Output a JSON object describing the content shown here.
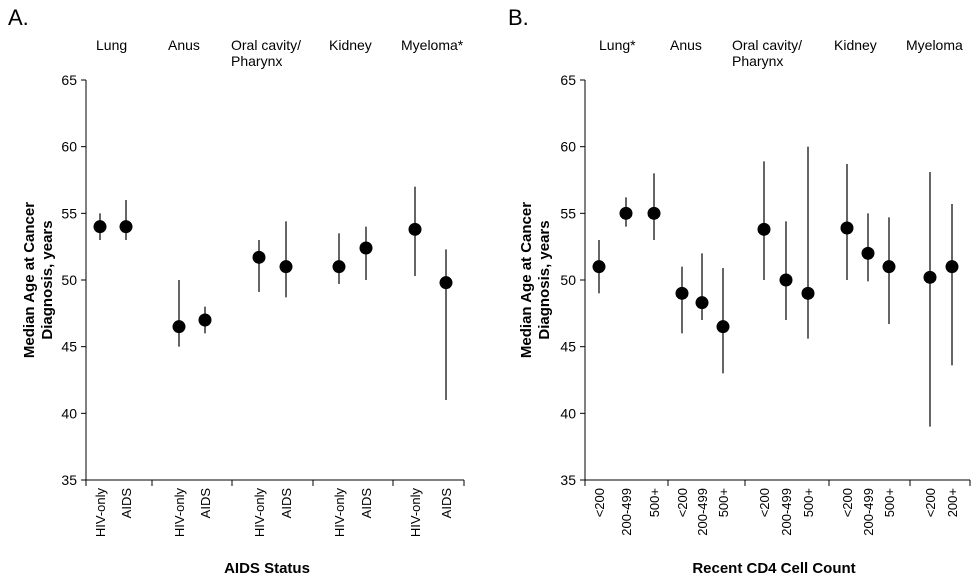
{
  "chart_data": [
    {
      "type": "scatter",
      "panel_label": "A.",
      "xlabel": "AIDS Status",
      "ylabel_lines": [
        "Median Age at Cancer",
        "Diagnosis, years"
      ],
      "ylim": [
        35,
        65
      ],
      "yticks": [
        "35",
        "40",
        "45",
        "50",
        "55",
        "60",
        "65"
      ],
      "groups": [
        {
          "label_lines": [
            "Lung"
          ],
          "points": [
            {
              "category": "HIV-only",
              "value": 54,
              "low": 53,
              "high": 55
            },
            {
              "category": "AIDS",
              "value": 54,
              "low": 53,
              "high": 56
            }
          ]
        },
        {
          "label_lines": [
            "Anus"
          ],
          "points": [
            {
              "category": "HIV-only",
              "value": 46.5,
              "low": 45,
              "high": 50
            },
            {
              "category": "AIDS",
              "value": 47,
              "low": 46,
              "high": 48
            }
          ]
        },
        {
          "label_lines": [
            "Oral cavity/",
            "Pharynx"
          ],
          "points": [
            {
              "category": "HIV-only",
              "value": 51.7,
              "low": 49.1,
              "high": 53
            },
            {
              "category": "AIDS",
              "value": 51,
              "low": 48.7,
              "high": 54.4
            }
          ]
        },
        {
          "label_lines": [
            "Kidney"
          ],
          "points": [
            {
              "category": "HIV-only",
              "value": 51,
              "low": 49.7,
              "high": 53.5
            },
            {
              "category": "AIDS",
              "value": 52.4,
              "low": 50,
              "high": 54
            }
          ]
        },
        {
          "label_lines": [
            "Myeloma*"
          ],
          "points": [
            {
              "category": "HIV-only",
              "value": 53.8,
              "low": 50.3,
              "high": 57
            },
            {
              "category": "AIDS",
              "value": 49.8,
              "low": 41,
              "high": 52.3
            }
          ]
        }
      ]
    },
    {
      "type": "scatter",
      "panel_label": "B.",
      "xlabel": "Recent CD4 Cell Count",
      "ylabel_lines": [
        "Median Age at Cancer",
        "Diagnosis, years"
      ],
      "ylim": [
        35,
        65
      ],
      "yticks": [
        "35",
        "40",
        "45",
        "50",
        "55",
        "60",
        "65"
      ],
      "groups": [
        {
          "label_lines": [
            "Lung*"
          ],
          "points": [
            {
              "category": "<200",
              "value": 51,
              "low": 49,
              "high": 53
            },
            {
              "category": "200-499",
              "value": 55,
              "low": 54,
              "high": 56.2
            },
            {
              "category": "500+",
              "value": 55,
              "low": 53,
              "high": 58
            }
          ]
        },
        {
          "label_lines": [
            "Anus"
          ],
          "points": [
            {
              "category": "<200",
              "value": 49,
              "low": 46,
              "high": 51
            },
            {
              "category": "200-499",
              "value": 48.3,
              "low": 47,
              "high": 52
            },
            {
              "category": "500+",
              "value": 46.5,
              "low": 43,
              "high": 50.9
            }
          ]
        },
        {
          "label_lines": [
            "Oral cavity/",
            "Pharynx"
          ],
          "points": [
            {
              "category": "<200",
              "value": 53.8,
              "low": 50,
              "high": 58.9
            },
            {
              "category": "200-499",
              "value": 50,
              "low": 47,
              "high": 54.4
            },
            {
              "category": "500+",
              "value": 49,
              "low": 45.6,
              "high": 60
            }
          ]
        },
        {
          "label_lines": [
            "Kidney"
          ],
          "points": [
            {
              "category": "<200",
              "value": 53.9,
              "low": 50,
              "high": 58.7
            },
            {
              "category": "200-499",
              "value": 52,
              "low": 49.9,
              "high": 55
            },
            {
              "category": "500+",
              "value": 51,
              "low": 46.7,
              "high": 54.7
            }
          ]
        },
        {
          "label_lines": [
            "Myeloma"
          ],
          "points": [
            {
              "category": "<200",
              "value": 50.2,
              "low": 39,
              "high": 58.1
            },
            {
              "category": "200+",
              "value": 51,
              "low": 43.6,
              "high": 55.7
            }
          ]
        }
      ]
    }
  ]
}
